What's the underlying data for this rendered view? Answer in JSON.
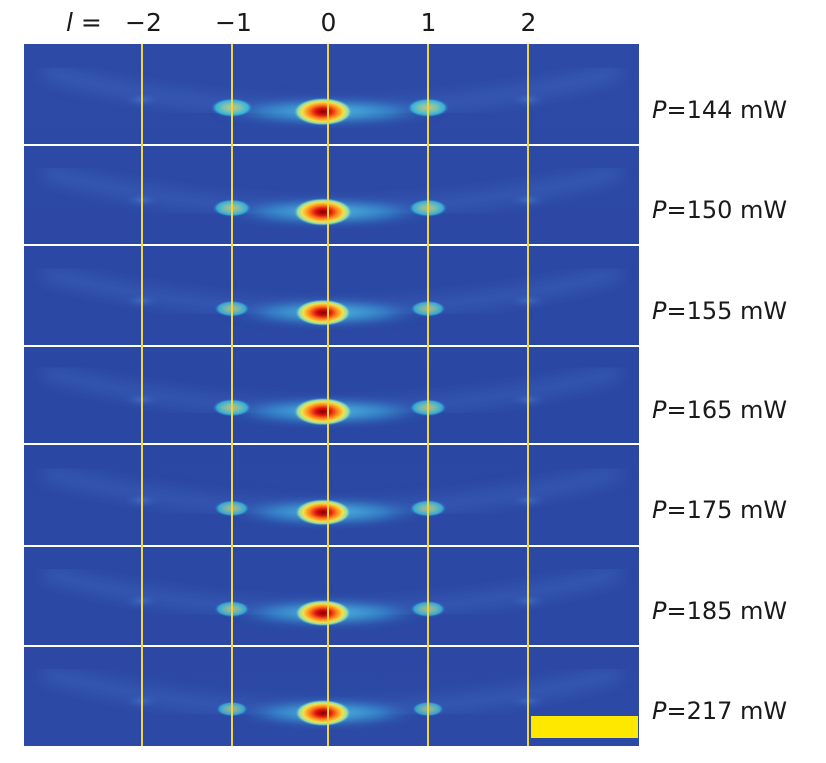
{
  "axis": {
    "title_var": "l",
    "title_eq": "=",
    "ticks": [
      {
        "label": "−2",
        "value": -2
      },
      {
        "label": "−1",
        "value": -1
      },
      {
        "label": "0",
        "value": 0
      },
      {
        "label": "1",
        "value": 1
      },
      {
        "label": "2",
        "value": 2
      }
    ]
  },
  "panels": [
    {
      "var": "P",
      "eq": "=",
      "value_text": "144 mW",
      "power_mw": 144,
      "order_intensity": {
        "m2": 0.05,
        "m1": 0.55,
        "z": 1.0,
        "p1": 0.55,
        "p2": 0.05
      }
    },
    {
      "var": "P",
      "eq": "=",
      "value_text": "150 mW",
      "power_mw": 150,
      "order_intensity": {
        "m2": 0.05,
        "m1": 0.45,
        "z": 1.0,
        "p1": 0.45,
        "p2": 0.05
      }
    },
    {
      "var": "P",
      "eq": "=",
      "value_text": "155 mW",
      "power_mw": 155,
      "order_intensity": {
        "m2": 0.04,
        "m1": 0.35,
        "z": 0.95,
        "p1": 0.35,
        "p2": 0.04
      }
    },
    {
      "var": "P",
      "eq": "=",
      "value_text": "165 mW",
      "power_mw": 165,
      "order_intensity": {
        "m2": 0.04,
        "m1": 0.45,
        "z": 1.0,
        "p1": 0.4,
        "p2": 0.04
      }
    },
    {
      "var": "P",
      "eq": "=",
      "value_text": "175 mW",
      "power_mw": 175,
      "order_intensity": {
        "m2": 0.04,
        "m1": 0.35,
        "z": 0.95,
        "p1": 0.4,
        "p2": 0.04
      }
    },
    {
      "var": "P",
      "eq": "=",
      "value_text": "185 mW",
      "power_mw": 185,
      "order_intensity": {
        "m2": 0.04,
        "m1": 0.35,
        "z": 0.95,
        "p1": 0.35,
        "p2": 0.04
      }
    },
    {
      "var": "P",
      "eq": "=",
      "value_text": "217 mW",
      "power_mw": 217,
      "order_intensity": {
        "m2": 0.03,
        "m1": 0.25,
        "z": 0.95,
        "p1": 0.25,
        "p2": 0.03
      }
    }
  ],
  "colors": {
    "background": "#2a45a0",
    "separator": "#ffffff",
    "order_line": "#f2d53a",
    "scale_bar": "#ffe800",
    "hot": "#e01010",
    "warm": "#f5e04a",
    "cool": "#37c8e6"
  }
}
